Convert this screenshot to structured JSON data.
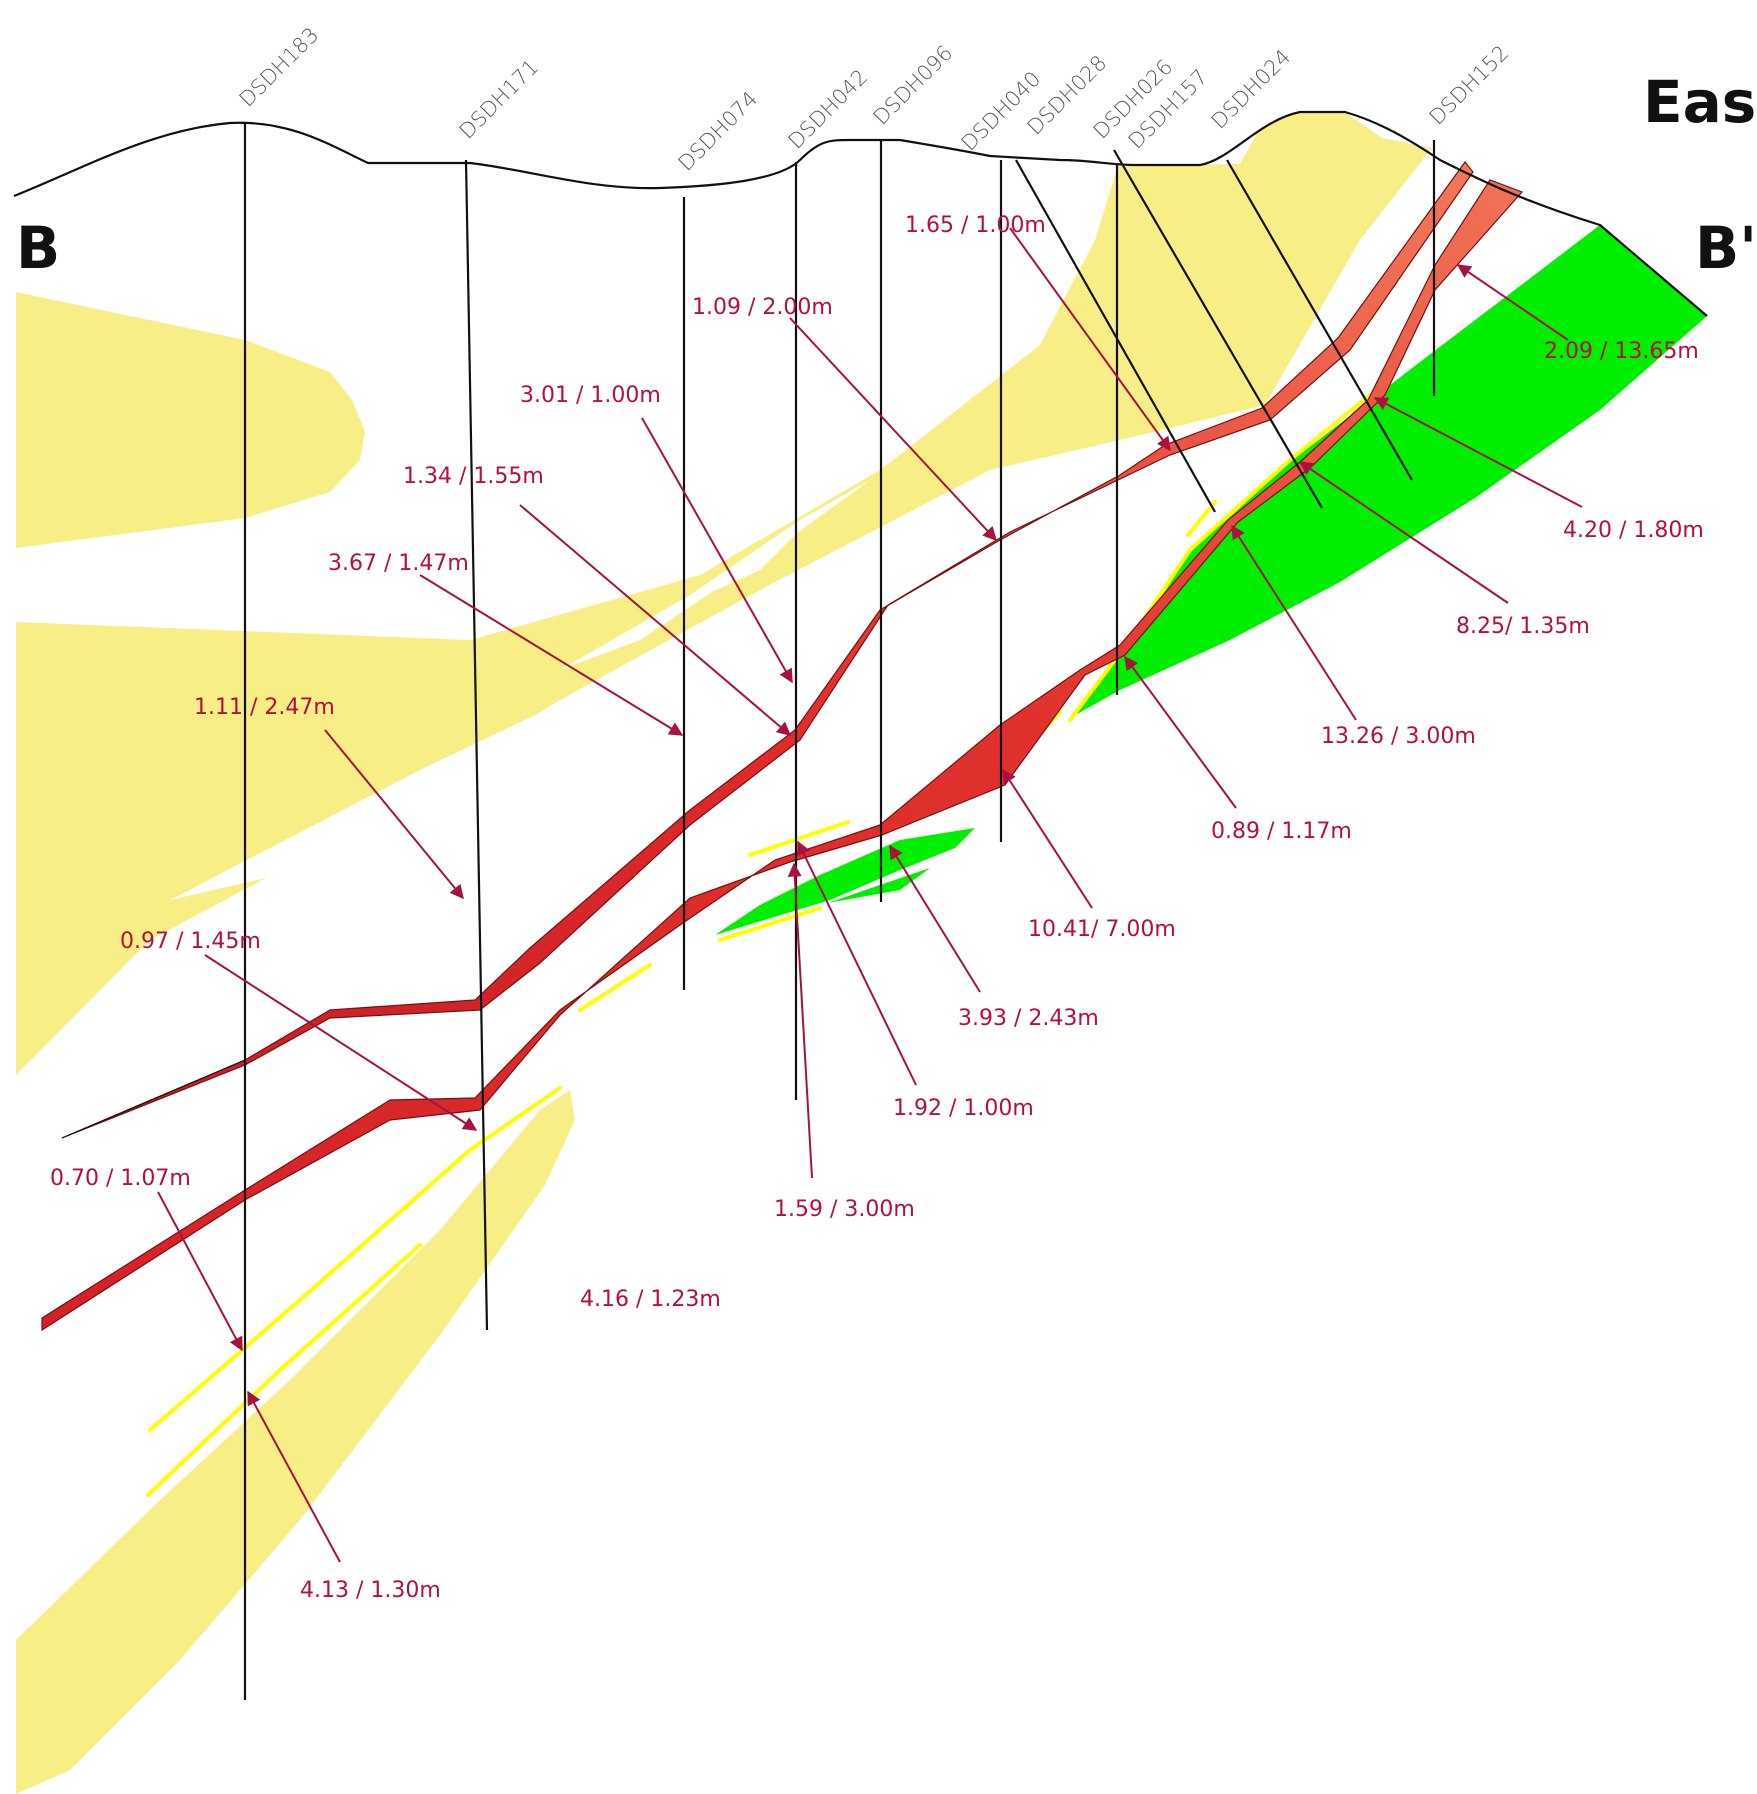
{
  "section": {
    "left_label": "B",
    "right_label": "B'",
    "corner_title": "Eas"
  },
  "colors": {
    "oxide_yellow": "#f7ef85",
    "vein_yellow": "#ffff00",
    "lode_red": "#d72027",
    "lode_orange": "#ee6b4e",
    "zone_green": "#00ee00",
    "annotation": "#b5103c",
    "trace": "#111111"
  },
  "drillholes": [
    "DSDH183",
    "DSDH171",
    "DSDH074",
    "DSDH042",
    "DSDH096",
    "DSDH040",
    "DSDH028",
    "DSDH026",
    "DSDH157",
    "DSDH024",
    "DSDH152"
  ],
  "assays": [
    "1.65 / 1.00m",
    "1.09 / 2.00m",
    "3.01 / 1.00m",
    "1.34 / 1.55m",
    "3.67 / 1.47m",
    "1.11 / 2.47m",
    "0.97 / 1.45m",
    "0.70 / 1.07m",
    "4.13 / 1.30m",
    "4.16 / 1.23m",
    "1.59 / 3.00m",
    "1.92 / 1.00m",
    "3.93 / 2.43m",
    "10.41/ 7.00m",
    "0.89 / 1.17m",
    "13.26 / 3.00m",
    "8.25/ 1.35m",
    "4.20 / 1.80m",
    "2.09 / 13.65m"
  ]
}
